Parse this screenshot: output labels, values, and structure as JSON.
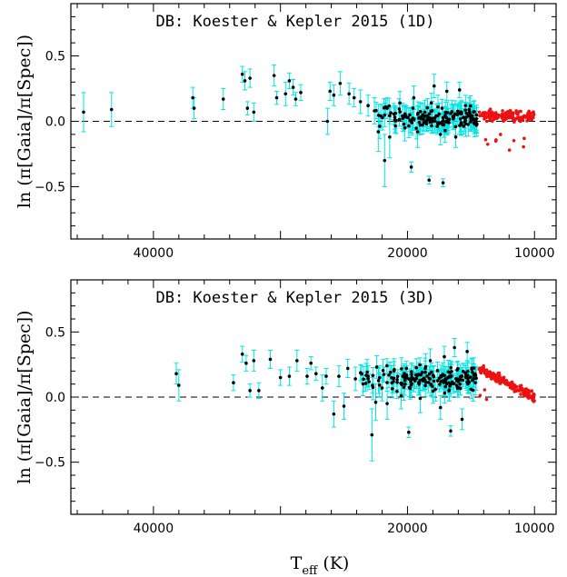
{
  "chart_data": [
    {
      "type": "scatter",
      "title": "DB: Koester & Kepler 2015 (1D)",
      "ylabel": "ln (π[Gaia]/π[Spec])",
      "xlim": [
        46500,
        8300
      ],
      "ylim": [
        -0.9,
        0.9
      ],
      "x_ticks": [
        40000,
        20000,
        10000
      ],
      "y_ticks": [
        0.5,
        0.0,
        -0.5
      ],
      "x_tick_labels": [
        "40000",
        "20000",
        "10000"
      ],
      "y_tick_labels": [
        "0.5",
        "0.0",
        "−0.5"
      ],
      "reference_line": 0.0,
      "colors": {
        "errorbar": "#00e5e5",
        "black_points": "#000000",
        "red_points": "#ee1111"
      },
      "series": [
        {
          "label_seed": 11,
          "points_with_errors": [
            [
              45500,
              0.07,
              0.15
            ],
            [
              43300,
              0.09,
              0.13
            ],
            [
              36900,
              0.18,
              0.08
            ],
            [
              36800,
              0.1,
              0.08
            ],
            [
              34500,
              0.17,
              0.08
            ],
            [
              33000,
              0.36,
              0.06
            ],
            [
              32800,
              0.31,
              0.07
            ],
            [
              32600,
              0.1,
              0.05
            ],
            [
              32400,
              0.33,
              0.07
            ],
            [
              32100,
              0.07,
              0.07
            ],
            [
              30500,
              0.35,
              0.08
            ],
            [
              30300,
              0.18,
              0.05
            ],
            [
              29600,
              0.21,
              0.09
            ],
            [
              29300,
              0.31,
              0.06
            ],
            [
              29000,
              0.26,
              0.06
            ],
            [
              28800,
              0.17,
              0.05
            ],
            [
              28400,
              0.22,
              0.06
            ],
            [
              26300,
              0.0,
              0.1
            ],
            [
              26100,
              0.23,
              0.07
            ],
            [
              25800,
              0.2,
              0.08
            ],
            [
              25300,
              0.29,
              0.09
            ],
            [
              24600,
              0.21,
              0.08
            ],
            [
              24200,
              0.18,
              0.07
            ],
            [
              23700,
              0.15,
              0.09
            ],
            [
              23100,
              0.12,
              0.08
            ],
            [
              22600,
              0.08,
              0.1
            ],
            [
              22300,
              -0.08,
              0.15
            ],
            [
              22100,
              0.04,
              0.09
            ],
            [
              21800,
              -0.3,
              0.2
            ],
            [
              21600,
              0.1,
              0.08
            ],
            [
              21400,
              -0.12,
              0.16
            ],
            [
              21000,
              0.03,
              0.09
            ],
            [
              20600,
              0.14,
              0.09
            ],
            [
              20200,
              -0.05,
              0.1
            ],
            [
              19700,
              -0.35,
              0.04
            ],
            [
              19500,
              0.18,
              0.09
            ],
            [
              19200,
              -0.08,
              0.12
            ],
            [
              18800,
              0.05,
              0.09
            ],
            [
              18300,
              -0.45,
              0.03
            ],
            [
              17900,
              0.27,
              0.09
            ],
            [
              17600,
              0.11,
              0.09
            ],
            [
              17400,
              -0.1,
              0.08
            ],
            [
              17200,
              -0.47,
              0.03
            ],
            [
              16900,
              0.23,
              0.07
            ],
            [
              16600,
              0.06,
              0.07
            ],
            [
              16200,
              -0.12,
              0.08
            ],
            [
              15900,
              0.24,
              0.06
            ],
            [
              15600,
              0.03,
              0.07
            ]
          ],
          "dense_black_region": {
            "x_range": [
              22500,
              14500
            ],
            "y_center": 0.03,
            "y_spread": 0.12,
            "count": 160,
            "err_range": [
              0.05,
              0.1
            ]
          },
          "red_region": {
            "x_range": [
              14400,
              10000
            ],
            "y_center": 0.04,
            "y_spread": 0.06,
            "count": 160
          }
        }
      ]
    },
    {
      "type": "scatter",
      "title": "DB: Koester & Kepler 2015 (3D)",
      "ylabel": "ln (π[Gaia]/π[Spec])",
      "xlabel": "T_eff (K)",
      "xlim": [
        46500,
        8300
      ],
      "ylim": [
        -0.9,
        0.9
      ],
      "x_ticks": [
        40000,
        20000,
        10000
      ],
      "y_ticks": [
        0.5,
        0.0,
        -0.5
      ],
      "x_tick_labels": [
        "40000",
        "20000",
        "10000"
      ],
      "y_tick_labels": [
        "0.5",
        "0.0",
        "−0.5"
      ],
      "reference_line": 0.0,
      "colors": {
        "errorbar": "#00e5e5",
        "black_points": "#000000",
        "red_points": "#ee1111"
      },
      "series": [
        {
          "label_seed": 29,
          "points_with_errors": [
            [
              38200,
              0.18,
              0.08
            ],
            [
              38000,
              0.09,
              0.12
            ],
            [
              33700,
              0.11,
              0.06
            ],
            [
              33000,
              0.33,
              0.06
            ],
            [
              32700,
              0.26,
              0.06
            ],
            [
              32400,
              0.05,
              0.05
            ],
            [
              32100,
              0.28,
              0.08
            ],
            [
              31700,
              0.05,
              0.06
            ],
            [
              30800,
              0.29,
              0.07
            ],
            [
              30000,
              0.15,
              0.06
            ],
            [
              29300,
              0.16,
              0.07
            ],
            [
              28700,
              0.28,
              0.08
            ],
            [
              27900,
              0.16,
              0.06
            ],
            [
              27600,
              0.26,
              0.05
            ],
            [
              27200,
              0.18,
              0.05
            ],
            [
              26700,
              0.07,
              0.1
            ],
            [
              26400,
              0.16,
              0.06
            ],
            [
              25800,
              -0.13,
              0.1
            ],
            [
              25400,
              0.16,
              0.08
            ],
            [
              25000,
              -0.07,
              0.1
            ],
            [
              24700,
              0.22,
              0.07
            ],
            [
              24100,
              0.14,
              0.09
            ],
            [
              23500,
              0.1,
              0.09
            ],
            [
              23100,
              0.16,
              0.08
            ],
            [
              22800,
              -0.29,
              0.2
            ],
            [
              22500,
              -0.04,
              0.14
            ],
            [
              22000,
              0.07,
              0.1
            ],
            [
              21600,
              -0.05,
              0.12
            ],
            [
              21100,
              0.12,
              0.09
            ],
            [
              20500,
              0.01,
              0.1
            ],
            [
              19900,
              -0.27,
              0.04
            ],
            [
              19500,
              0.14,
              0.1
            ],
            [
              19000,
              -0.01,
              0.11
            ],
            [
              18600,
              0.22,
              0.08
            ],
            [
              18200,
              0.28,
              0.09
            ],
            [
              17800,
              0.06,
              0.09
            ],
            [
              17400,
              -0.08,
              0.09
            ],
            [
              17100,
              0.31,
              0.08
            ],
            [
              16600,
              -0.26,
              0.04
            ],
            [
              16300,
              0.38,
              0.07
            ],
            [
              16000,
              0.12,
              0.08
            ],
            [
              15700,
              -0.17,
              0.08
            ],
            [
              15300,
              0.35,
              0.07
            ],
            [
              15000,
              0.06,
              0.07
            ]
          ],
          "dense_black_region": {
            "x_range": [
              24000,
              14500
            ],
            "y_center": 0.14,
            "y_spread": 0.14,
            "count": 170,
            "err_range": [
              0.05,
              0.1
            ]
          },
          "red_region": {
            "x_range": [
              14400,
              10000
            ],
            "y_trend": [
              0.22,
              0.0
            ],
            "y_spread": 0.05,
            "count": 170
          }
        }
      ]
    }
  ]
}
